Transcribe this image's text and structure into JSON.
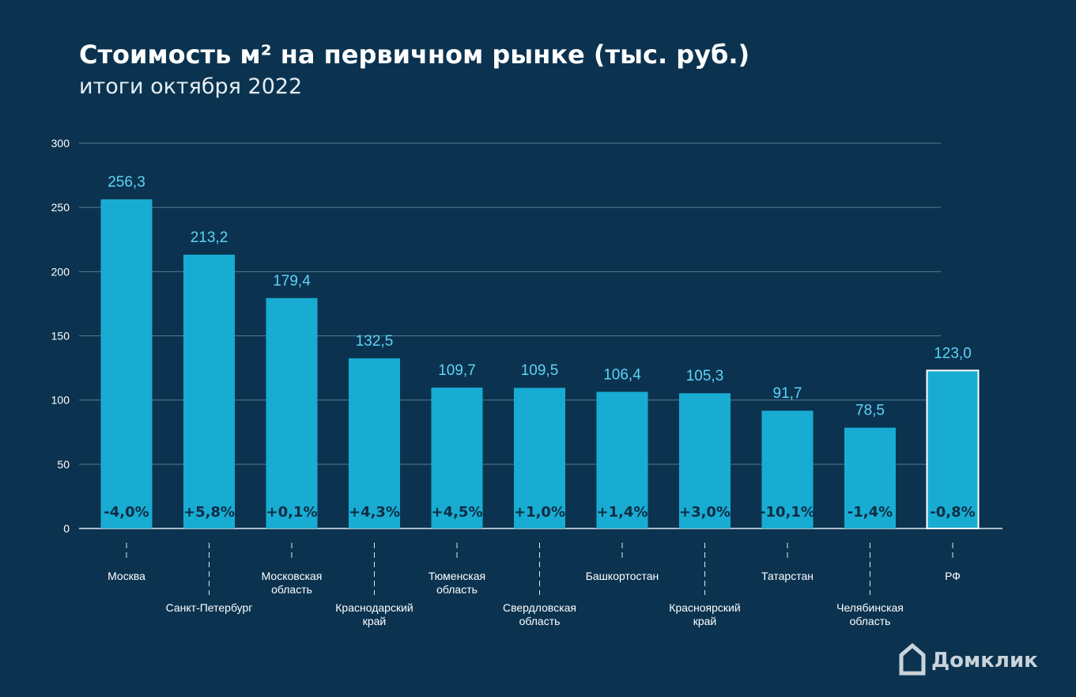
{
  "chart_data": {
    "type": "bar",
    "title": "Стоимость м² на первичном рынке (тыс. руб.)",
    "subtitle": "итоги октября 2022",
    "categories": [
      "Москва",
      "Санкт-Петербург",
      "Московская\nобласть",
      "Краснодарский\nкрай",
      "Тюменская\nобласть",
      "Свердловская\nобласть",
      "Башкортостан",
      "Красноярский\nкрай",
      "Татарстан",
      "Челябинская\nобласть",
      "РФ"
    ],
    "values": [
      256.3,
      213.2,
      179.4,
      132.5,
      109.7,
      109.5,
      106.4,
      105.3,
      91.7,
      78.5,
      123.0
    ],
    "value_labels": [
      "256,3",
      "213,2",
      "179,4",
      "132,5",
      "109,7",
      "109,5",
      "106,4",
      "105,3",
      "91,7",
      "78,5",
      "123,0"
    ],
    "change_labels": [
      "-4,0%",
      "+5,8%",
      "+0,1%",
      "+4,3%",
      "+4,5%",
      "+1,0%",
      "+1,4%",
      "+3,0%",
      "-10,1%",
      "-1,4%",
      "-0,8%"
    ],
    "color": "#18acd2",
    "ylim": [
      0,
      300
    ],
    "yticks": [
      0,
      50,
      100,
      150,
      200,
      250,
      300
    ],
    "grid": true,
    "logo": "Домклик"
  }
}
